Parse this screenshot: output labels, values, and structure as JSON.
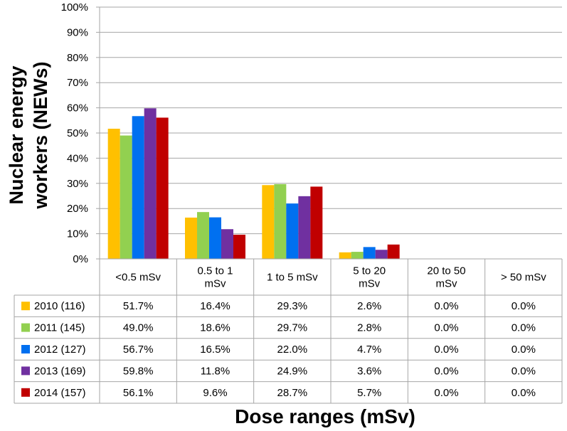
{
  "chart_data": {
    "type": "bar",
    "ylabel": "Nuclear energy workers (NEWs)",
    "xlabel": "Dose ranges (mSv)",
    "ylim": [
      0,
      100
    ],
    "yticks": [
      "0%",
      "10%",
      "20%",
      "30%",
      "40%",
      "50%",
      "60%",
      "70%",
      "80%",
      "90%",
      "100%"
    ],
    "grid": true,
    "legend": "data-table",
    "categories": [
      [
        "<0.5 mSv"
      ],
      [
        "0.5 to 1",
        "mSv"
      ],
      [
        "1 to 5 mSv"
      ],
      [
        "5 to 20",
        "mSv"
      ],
      [
        "20 to 50",
        "mSv"
      ],
      [
        "> 50 mSv"
      ]
    ],
    "series": [
      {
        "name": "2010 (116)",
        "color": "#FFC000",
        "values": [
          51.7,
          16.4,
          29.3,
          2.6,
          0.0,
          0.0
        ],
        "labels": [
          "51.7%",
          "16.4%",
          "29.3%",
          "2.6%",
          "0.0%",
          "0.0%"
        ]
      },
      {
        "name": "2011 (145)",
        "color": "#92D050",
        "values": [
          49.0,
          18.6,
          29.7,
          2.8,
          0.0,
          0.0
        ],
        "labels": [
          "49.0%",
          "18.6%",
          "29.7%",
          "2.8%",
          "0.0%",
          "0.0%"
        ]
      },
      {
        "name": "2012 (127)",
        "color": "#0070F0",
        "values": [
          56.7,
          16.5,
          22.0,
          4.7,
          0.0,
          0.0
        ],
        "labels": [
          "56.7%",
          "16.5%",
          "22.0%",
          "4.7%",
          "0.0%",
          "0.0%"
        ]
      },
      {
        "name": "2013 (169)",
        "color": "#7030A0",
        "values": [
          59.8,
          11.8,
          24.9,
          3.6,
          0.0,
          0.0
        ],
        "labels": [
          "59.8%",
          "11.8%",
          "24.9%",
          "3.6%",
          "0.0%",
          "0.0%"
        ]
      },
      {
        "name": "2014 (157)",
        "color": "#C00000",
        "values": [
          56.1,
          9.6,
          28.7,
          5.7,
          0.0,
          0.0
        ],
        "labels": [
          "56.1%",
          "9.6%",
          "28.7%",
          "5.7%",
          "0.0%",
          "0.0%"
        ]
      }
    ]
  }
}
